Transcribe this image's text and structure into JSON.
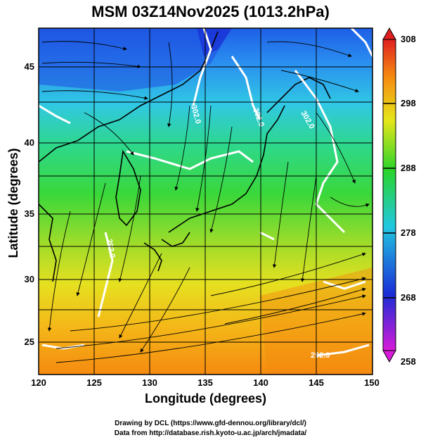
{
  "title": "MSM 03Z14Nov2025 (1013.2hPa)",
  "map": {
    "xlabel": "Longitude (degrees)",
    "ylabel": "Latitude  (degrees)",
    "x_ticks": [
      "120",
      "125",
      "130",
      "135",
      "140",
      "145",
      "150"
    ],
    "y_ticks": [
      "25",
      "30",
      "35",
      "40",
      "45"
    ],
    "lon_range": [
      120,
      150
    ],
    "lat_range": [
      22.4,
      47.6
    ],
    "contour_labels": [
      "302.0",
      "302.0",
      "302.0",
      "292.0",
      "292.0"
    ]
  },
  "colorbar": {
    "ticks": [
      "308",
      "298",
      "288",
      "278",
      "268",
      "258"
    ],
    "range": [
      258,
      308
    ],
    "colors": [
      "#d81bd8",
      "#1a2cd6",
      "#20c8e0",
      "#2ad42a",
      "#e6e61a",
      "#f58a10",
      "#e02020"
    ]
  },
  "footer": {
    "line1": "Drawing by DCL (https://www.gfd-dennou.org/library/dcl/)",
    "line2": "Data from http://database.rish.kyoto-u.ac.jp/arch/jmadata/"
  }
}
